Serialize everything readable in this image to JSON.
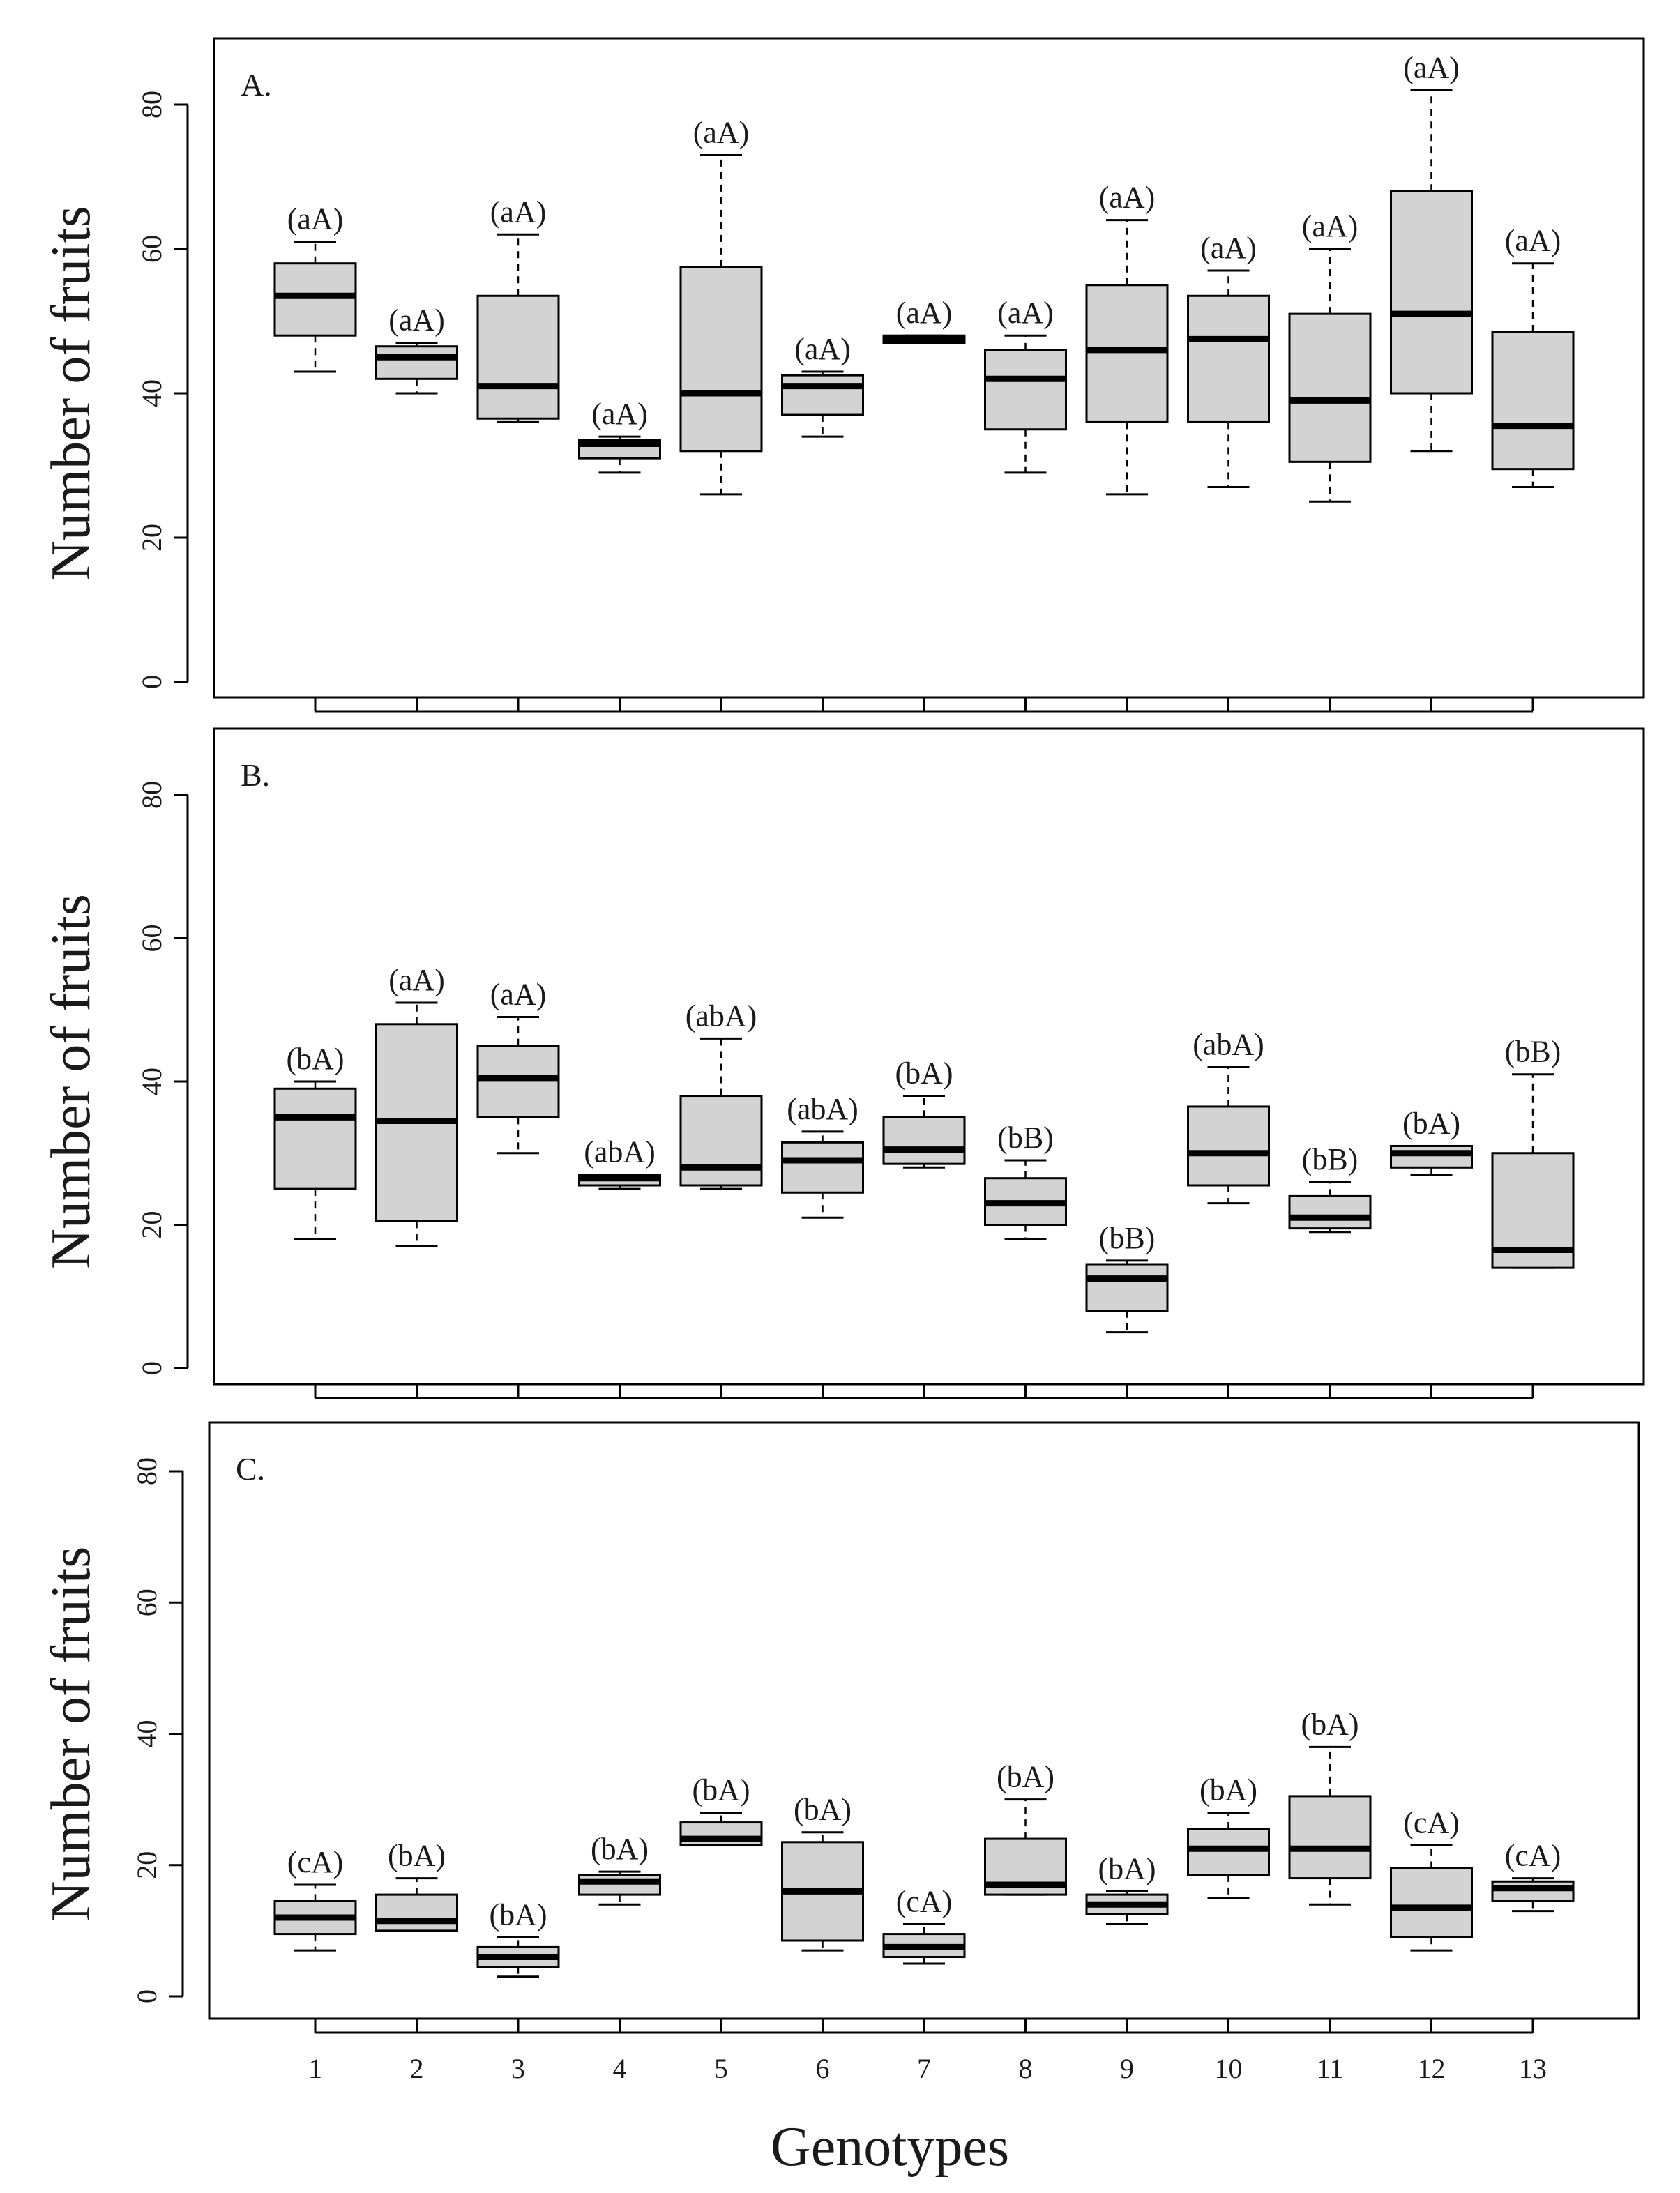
{
  "chart_data": [
    {
      "type": "box",
      "panel_label": "A.",
      "ylabel": "Number of fruits",
      "ylim": [
        0,
        88
      ],
      "yticks": [
        0,
        20,
        40,
        60,
        80
      ],
      "categories": [
        "1",
        "2",
        "3",
        "4",
        "5",
        "6",
        "7",
        "8",
        "9",
        "10",
        "11",
        "12",
        "13"
      ],
      "boxes": [
        {
          "min": 43,
          "q1": 48,
          "median": 53.5,
          "q3": 58,
          "max": 61,
          "letter": "(aA)"
        },
        {
          "min": 40,
          "q1": 42,
          "median": 45,
          "q3": 46.5,
          "max": 47,
          "letter": "(aA)"
        },
        {
          "min": 36,
          "q1": 36.5,
          "median": 41,
          "q3": 53.5,
          "max": 62,
          "letter": "(aA)"
        },
        {
          "min": 29,
          "q1": 31,
          "median": 33,
          "q3": 33.5,
          "max": 34,
          "letter": "(aA)"
        },
        {
          "min": 26,
          "q1": 32,
          "median": 40,
          "q3": 57.5,
          "max": 73,
          "letter": "(aA)"
        },
        {
          "min": 34,
          "q1": 37,
          "median": 41,
          "q3": 42.5,
          "max": 43,
          "letter": "(aA)"
        },
        {
          "min": 47,
          "q1": 47,
          "median": 47.5,
          "q3": 48,
          "max": 48,
          "letter": "(aA)"
        },
        {
          "min": 29,
          "q1": 35,
          "median": 42,
          "q3": 46,
          "max": 48,
          "letter": "(aA)"
        },
        {
          "min": 26,
          "q1": 36,
          "median": 46,
          "q3": 55,
          "max": 64,
          "letter": "(aA)"
        },
        {
          "min": 27,
          "q1": 36,
          "median": 47.5,
          "q3": 53.5,
          "max": 57,
          "letter": "(aA)"
        },
        {
          "min": 25,
          "q1": 30.5,
          "median": 39,
          "q3": 51,
          "max": 60,
          "letter": "(aA)"
        },
        {
          "min": 32,
          "q1": 40,
          "median": 51,
          "q3": 68,
          "max": 82,
          "letter": "(aA)"
        },
        {
          "min": 27,
          "q1": 29.5,
          "median": 35.5,
          "q3": 48.5,
          "max": 58,
          "letter": "(aA)"
        }
      ]
    },
    {
      "type": "box",
      "panel_label": "B.",
      "ylabel": "Number of fruits",
      "ylim": [
        0,
        88
      ],
      "yticks": [
        0,
        20,
        40,
        60,
        80
      ],
      "categories": [
        "1",
        "2",
        "3",
        "4",
        "5",
        "6",
        "7",
        "8",
        "9",
        "10",
        "11",
        "12",
        "13"
      ],
      "boxes": [
        {
          "min": 18,
          "q1": 25,
          "median": 35,
          "q3": 39,
          "max": 40,
          "letter": "(bA)"
        },
        {
          "min": 17,
          "q1": 20.5,
          "median": 34.5,
          "q3": 48,
          "max": 51,
          "letter": "(aA)"
        },
        {
          "min": 30,
          "q1": 35,
          "median": 40.5,
          "q3": 45,
          "max": 49,
          "letter": "(aA)"
        },
        {
          "min": 25,
          "q1": 25.5,
          "median": 26.5,
          "q3": 27,
          "max": 27,
          "letter": "(abA)"
        },
        {
          "min": 25,
          "q1": 25.5,
          "median": 28,
          "q3": 38,
          "max": 46,
          "letter": "(abA)"
        },
        {
          "min": 21,
          "q1": 24.5,
          "median": 29,
          "q3": 31.5,
          "max": 33,
          "letter": "(abA)"
        },
        {
          "min": 28,
          "q1": 28.5,
          "median": 30.5,
          "q3": 35,
          "max": 38,
          "letter": "(bA)"
        },
        {
          "min": 18,
          "q1": 20,
          "median": 23,
          "q3": 26.5,
          "max": 29,
          "letter": "(bB)"
        },
        {
          "min": 5,
          "q1": 8,
          "median": 12.5,
          "q3": 14.5,
          "max": 15,
          "letter": "(bB)"
        },
        {
          "min": 23,
          "q1": 25.5,
          "median": 30,
          "q3": 36.5,
          "max": 42,
          "letter": "(abA)"
        },
        {
          "min": 19,
          "q1": 19.5,
          "median": 21,
          "q3": 24,
          "max": 26,
          "letter": "(bB)"
        },
        {
          "min": 27,
          "q1": 28,
          "median": 30,
          "q3": 31,
          "max": 31,
          "letter": "(bA)"
        },
        {
          "min": 14,
          "q1": 14,
          "median": 16.5,
          "q3": 30,
          "max": 41,
          "letter": "(bB)"
        }
      ]
    },
    {
      "type": "box",
      "panel_label": "C.",
      "ylabel": "Number of fruits",
      "xlabel": "Genotypes",
      "ylim": [
        0,
        88
      ],
      "yticks": [
        0,
        20,
        40,
        60,
        80
      ],
      "categories": [
        "1",
        "2",
        "3",
        "4",
        "5",
        "6",
        "7",
        "8",
        "9",
        "10",
        "11",
        "12",
        "13"
      ],
      "boxes": [
        {
          "min": 7,
          "q1": 9.5,
          "median": 12,
          "q3": 14.5,
          "max": 17,
          "letter": "(cA)"
        },
        {
          "min": 10,
          "q1": 10,
          "median": 11.5,
          "q3": 15.5,
          "max": 18,
          "letter": "(bA)"
        },
        {
          "min": 3,
          "q1": 4.5,
          "median": 6,
          "q3": 7.5,
          "max": 9,
          "letter": "(bA)"
        },
        {
          "min": 14,
          "q1": 15.5,
          "median": 17.5,
          "q3": 18.5,
          "max": 19,
          "letter": "(bA)"
        },
        {
          "min": 23,
          "q1": 23,
          "median": 24,
          "q3": 26.5,
          "max": 28,
          "letter": "(bA)"
        },
        {
          "min": 7,
          "q1": 8.5,
          "median": 16,
          "q3": 23.5,
          "max": 25,
          "letter": "(bA)"
        },
        {
          "min": 5,
          "q1": 6,
          "median": 7.5,
          "q3": 9.5,
          "max": 11,
          "letter": "(cA)"
        },
        {
          "min": 15.5,
          "q1": 15.5,
          "median": 17,
          "q3": 24,
          "max": 30,
          "letter": "(bA)"
        },
        {
          "min": 11,
          "q1": 12.5,
          "median": 14,
          "q3": 15.5,
          "max": 16,
          "letter": "(bA)"
        },
        {
          "min": 15,
          "q1": 18.5,
          "median": 22.5,
          "q3": 25.5,
          "max": 28,
          "letter": "(bA)"
        },
        {
          "min": 14,
          "q1": 18,
          "median": 22.5,
          "q3": 30.5,
          "max": 38,
          "letter": "(bA)"
        },
        {
          "min": 7,
          "q1": 9,
          "median": 13.5,
          "q3": 19.5,
          "max": 23,
          "letter": "(cA)"
        },
        {
          "min": 13,
          "q1": 14.5,
          "median": 16.5,
          "q3": 17.5,
          "max": 18,
          "letter": "(cA)"
        }
      ]
    }
  ],
  "colors": {
    "box_fill": "#d3d3d3",
    "stroke": "#000000"
  }
}
